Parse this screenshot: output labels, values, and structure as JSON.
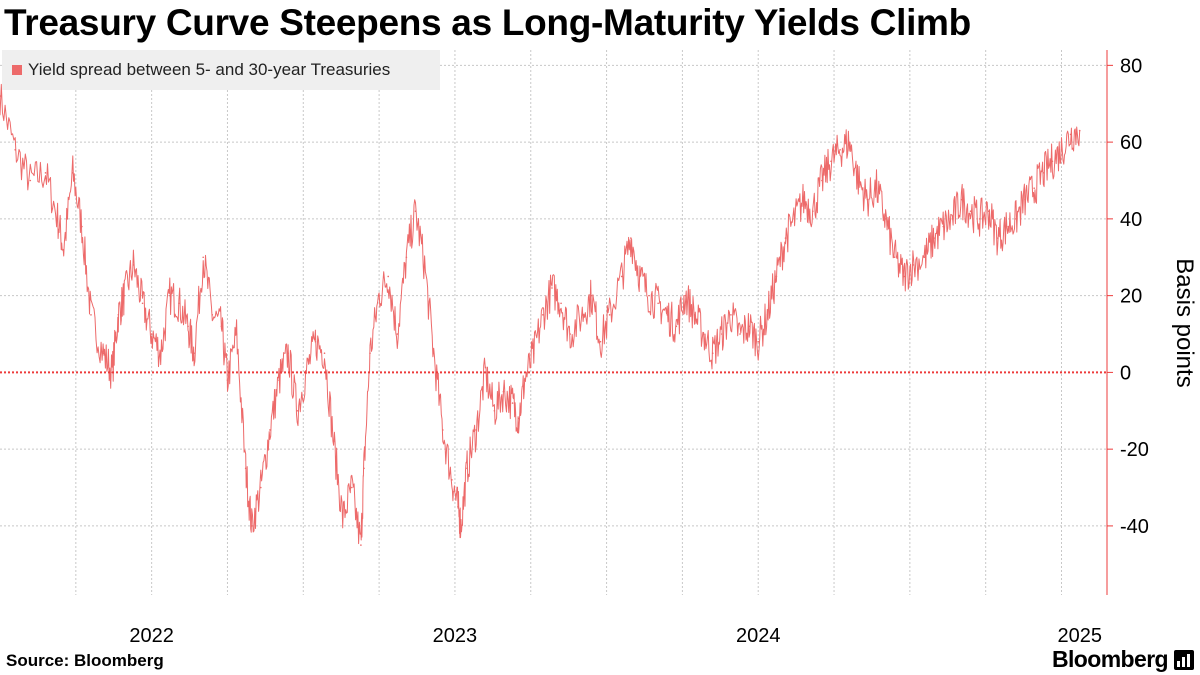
{
  "title": "Treasury Curve Steepens as Long-Maturity Yields Climb",
  "legend_label": "Yield spread between 5- and 30-year Treasuries",
  "source": "Source: Bloomberg",
  "brand": "Bloomberg",
  "brand_icon": "bloomberg-terminal-icon",
  "colors": {
    "series": "#ed6a6a",
    "axis": "#ed3b3b",
    "grid": "#c8c8c8",
    "legend_bg": "#efefef"
  },
  "chart_data": {
    "type": "line",
    "title": "Treasury Curve Steepens as Long-Maturity Yields Climb",
    "xlabel": "",
    "ylabel": "Basis points",
    "ylim": [
      -58,
      84
    ],
    "xlim": [
      2021.5,
      2025.15
    ],
    "yticks": [
      -40,
      -20,
      0,
      20,
      40,
      60,
      80
    ],
    "ytick_labels": [
      "-40",
      "-20",
      "0",
      "20",
      "40",
      "60",
      "80"
    ],
    "xtick_labels": [
      "2022",
      "2023",
      "2024",
      "2025"
    ],
    "xtick_positions": [
      2022.0,
      2023.0,
      2024.0,
      2025.0
    ],
    "reference_line": 0,
    "grid": true,
    "legend_position": "top-left",
    "series": [
      {
        "name": "Yield spread between 5- and 30-year Treasuries",
        "x": [
          2021.5,
          2021.55,
          2021.6,
          2021.65,
          2021.69,
          2021.71,
          2021.74,
          2021.77,
          2021.8,
          2021.84,
          2021.87,
          2021.89,
          2021.91,
          2021.94,
          2021.97,
          2022.0,
          2022.03,
          2022.06,
          2022.09,
          2022.12,
          2022.14,
          2022.17,
          2022.2,
          2022.23,
          2022.25,
          2022.28,
          2022.31,
          2022.33,
          2022.36,
          2022.39,
          2022.42,
          2022.45,
          2022.48,
          2022.51,
          2022.54,
          2022.57,
          2022.6,
          2022.63,
          2022.66,
          2022.69,
          2022.7,
          2022.72,
          2022.75,
          2022.78,
          2022.81,
          2022.84,
          2022.87,
          2022.9,
          2022.93,
          2022.96,
          2022.99,
          2023.01,
          2023.02,
          2023.04,
          2023.07,
          2023.1,
          2023.13,
          2023.16,
          2023.19,
          2023.21,
          2023.23,
          2023.26,
          2023.29,
          2023.32,
          2023.35,
          2023.38,
          2023.42,
          2023.45,
          2023.48,
          2023.51,
          2023.55,
          2023.58,
          2023.61,
          2023.64,
          2023.67,
          2023.7,
          2023.73,
          2023.76,
          2023.79,
          2023.82,
          2023.85,
          2023.88,
          2023.91,
          2023.94,
          2023.97,
          2024.0,
          2024.03,
          2024.06,
          2024.09,
          2024.12,
          2024.15,
          2024.18,
          2024.21,
          2024.24,
          2024.27,
          2024.3,
          2024.33,
          2024.36,
          2024.39,
          2024.42,
          2024.45,
          2024.48,
          2024.51,
          2024.55,
          2024.58,
          2024.61,
          2024.64,
          2024.67,
          2024.7,
          2024.73,
          2024.76,
          2024.79,
          2024.82,
          2024.85,
          2024.88,
          2024.91,
          2024.94,
          2024.97,
          2025.0,
          2025.03,
          2025.06
        ],
        "values": [
          72,
          58,
          50,
          52,
          40,
          32,
          52,
          38,
          15,
          5,
          0,
          15,
          20,
          28,
          18,
          10,
          5,
          20,
          18,
          12,
          5,
          30,
          15,
          12,
          -2,
          10,
          -25,
          -40,
          -30,
          -15,
          -2,
          5,
          -10,
          0,
          8,
          5,
          -18,
          -38,
          -30,
          -45,
          -25,
          5,
          20,
          25,
          10,
          30,
          42,
          28,
          5,
          -15,
          -28,
          -35,
          -40,
          -25,
          -15,
          0,
          -10,
          -5,
          -8,
          -12,
          -2,
          5,
          15,
          22,
          18,
          10,
          15,
          20,
          8,
          15,
          25,
          35,
          25,
          20,
          18,
          15,
          12,
          20,
          15,
          10,
          5,
          10,
          15,
          10,
          12,
          8,
          15,
          25,
          35,
          40,
          45,
          42,
          50,
          55,
          58,
          60,
          50,
          45,
          48,
          40,
          30,
          25,
          28,
          30,
          35,
          38,
          40,
          45,
          42,
          40,
          42,
          35,
          38,
          40,
          45,
          48,
          52,
          55,
          58,
          62,
          63
        ]
      }
    ]
  }
}
